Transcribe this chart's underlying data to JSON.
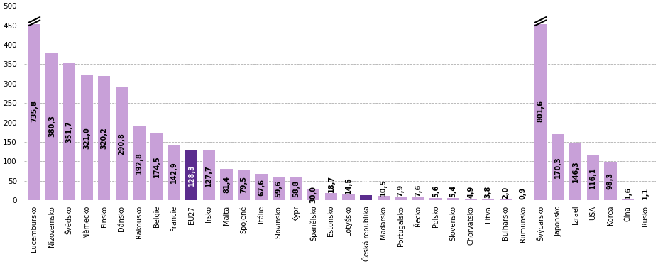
{
  "categories": [
    "Lucembursko",
    "Nizozemsko",
    "Švédsko",
    "Německo",
    "Finsko",
    "Dánsko",
    "Rakousko",
    "Belgie",
    "Francie",
    "EU27",
    "Irsko",
    "Malta",
    "Spojené",
    "Itálie",
    "Slovinsko",
    "Kypr",
    "Španělsko",
    "Estonsko",
    "Lotyšsko",
    "Česká republika",
    "Maďarsko",
    "Portugalsko",
    "Řecko",
    "Polsko",
    "Slovensko",
    "Chorvatsko",
    "Litva",
    "Bulharsko",
    "Rumunsko",
    "Švýcarsko",
    "Japonsko",
    "Izrael",
    "USA",
    "Korea",
    "Čína",
    "Rusko"
  ],
  "values": [
    735.8,
    380.3,
    351.7,
    321.0,
    320.2,
    290.8,
    192.8,
    174.5,
    142.9,
    128.3,
    127.7,
    81.4,
    79.5,
    67.6,
    59.6,
    58.8,
    30.0,
    18.7,
    14.5,
    12.9,
    10.5,
    7.9,
    7.6,
    5.6,
    5.4,
    4.9,
    3.8,
    2.0,
    0.9,
    801.6,
    170.3,
    146.3,
    116.1,
    98.3,
    1.6,
    1.1
  ],
  "bar_colors": [
    "#c8a0d8",
    "#c8a0d8",
    "#c8a0d8",
    "#c8a0d8",
    "#c8a0d8",
    "#c8a0d8",
    "#c8a0d8",
    "#c8a0d8",
    "#c8a0d8",
    "#5b2d8e",
    "#c8a0d8",
    "#c8a0d8",
    "#c8a0d8",
    "#c8a0d8",
    "#c8a0d8",
    "#c8a0d8",
    "#c8a0d8",
    "#c8a0d8",
    "#c8a0d8",
    "#5b2d8e",
    "#c8a0d8",
    "#c8a0d8",
    "#c8a0d8",
    "#c8a0d8",
    "#c8a0d8",
    "#c8a0d8",
    "#c8a0d8",
    "#c8a0d8",
    "#c8a0d8",
    "#c8a0d8",
    "#c8a0d8",
    "#c8a0d8",
    "#c8a0d8",
    "#c8a0d8",
    "#c8a0d8",
    "#c8a0d8"
  ],
  "label_colors": [
    "#000000",
    "#000000",
    "#000000",
    "#000000",
    "#000000",
    "#000000",
    "#000000",
    "#000000",
    "#000000",
    "#ffffff",
    "#000000",
    "#000000",
    "#000000",
    "#000000",
    "#000000",
    "#000000",
    "#000000",
    "#000000",
    "#000000",
    "#ffffff",
    "#000000",
    "#000000",
    "#000000",
    "#000000",
    "#000000",
    "#000000",
    "#000000",
    "#000000",
    "#000000",
    "#000000",
    "#000000",
    "#000000",
    "#000000",
    "#000000",
    "#000000",
    "#000000"
  ],
  "ylim": [
    0,
    500
  ],
  "yticks": [
    0,
    50,
    100,
    150,
    200,
    250,
    300,
    350,
    400,
    450,
    500
  ],
  "break_indices": [
    0,
    29
  ],
  "background_color": "#ffffff",
  "grid_color": "#b0b0b0",
  "label_fontsize": 7,
  "tick_fontsize": 7.5
}
